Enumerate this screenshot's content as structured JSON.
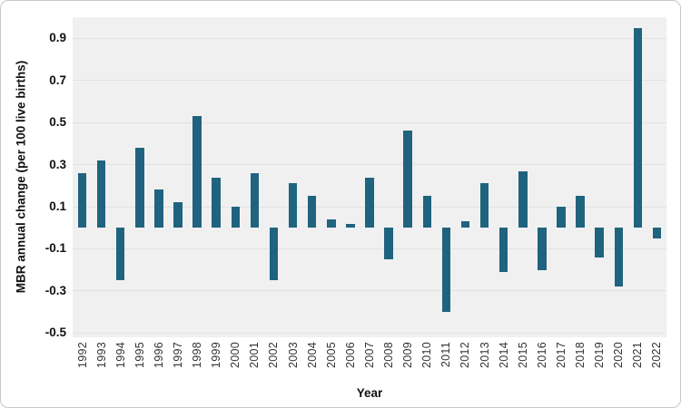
{
  "chart_data": {
    "type": "bar",
    "title": "",
    "xlabel": "Year",
    "ylabel": "MBR annual change (per 100 live births)",
    "categories": [
      "1992",
      "1993",
      "1994",
      "1995",
      "1996",
      "1997",
      "1998",
      "1999",
      "2000",
      "2001",
      "2002",
      "2003",
      "2004",
      "2005",
      "2006",
      "2007",
      "2008",
      "2009",
      "2010",
      "2011",
      "2012",
      "2013",
      "2014",
      "2015",
      "2016",
      "2017",
      "2018",
      "2019",
      "2020",
      "2021",
      "2022"
    ],
    "values": [
      0.26,
      0.32,
      -0.25,
      0.38,
      0.18,
      0.12,
      0.53,
      0.24,
      0.1,
      0.26,
      -0.25,
      0.21,
      0.15,
      0.04,
      0.02,
      0.24,
      -0.15,
      0.46,
      0.15,
      -0.4,
      0.03,
      0.21,
      -0.21,
      0.27,
      -0.2,
      0.1,
      0.15,
      -0.14,
      -0.28,
      0.95,
      -0.05
    ],
    "ytick_labels": [
      "0.9",
      "0.7",
      "0.5",
      "0.3",
      "0.1",
      "-0.1",
      "-0.3",
      "-0.5"
    ],
    "ytick_values": [
      0.9,
      0.7,
      0.5,
      0.3,
      0.1,
      -0.1,
      -0.3,
      -0.5
    ],
    "ylim": [
      -0.52,
      1.0
    ],
    "grid": true,
    "legend": "none",
    "colors": {
      "bar": "#20637f",
      "plot_background": "#f0f0f0",
      "gridline": "#e2e2e2",
      "figure_background": "#ffffff",
      "figure_border": "#c9c9c9",
      "tick_text": "#111111",
      "year_text": "#333333"
    }
  }
}
